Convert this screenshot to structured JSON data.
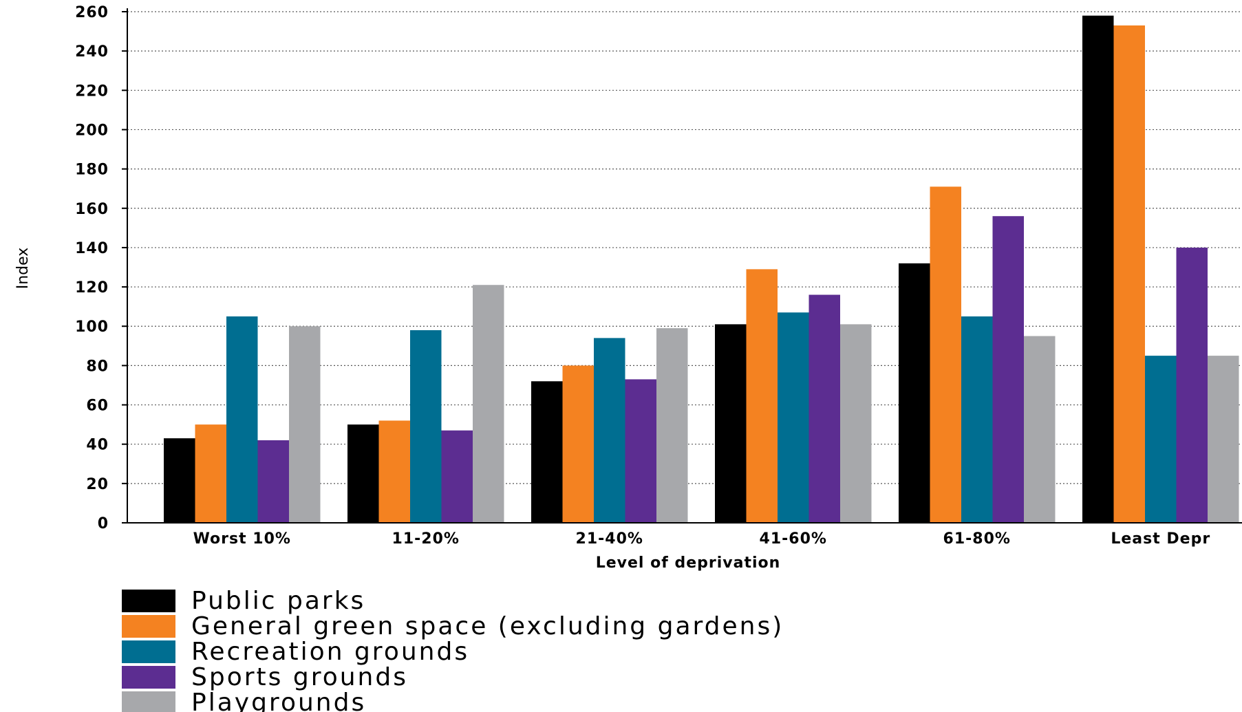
{
  "chart_data": {
    "type": "bar",
    "title": "",
    "xlabel": "Level of deprivation",
    "ylabel": "Index",
    "ylim": [
      0,
      260
    ],
    "yticks": [
      0,
      20,
      40,
      60,
      80,
      100,
      120,
      140,
      160,
      180,
      200,
      220,
      240,
      260
    ],
    "grid": true,
    "legend_position": "bottom-left",
    "categories": [
      "Worst 10%",
      "11-20%",
      "21-40%",
      "41-60%",
      "61-80%",
      "Least Depr"
    ],
    "series": [
      {
        "name": "Public parks",
        "color": "#000000",
        "values": [
          43,
          50,
          72,
          101,
          132,
          258
        ]
      },
      {
        "name": "General green space (excluding gardens)",
        "color": "#f48221",
        "values": [
          50,
          52,
          80,
          129,
          171,
          253
        ]
      },
      {
        "name": "Recreation grounds",
        "color": "#006e91",
        "values": [
          105,
          98,
          94,
          107,
          105,
          85
        ]
      },
      {
        "name": "Sports grounds",
        "color": "#5c2d91",
        "values": [
          42,
          47,
          73,
          116,
          156,
          140
        ]
      },
      {
        "name": "Playgrounds",
        "color": "#a7a8ab",
        "values": [
          100,
          121,
          99,
          101,
          95,
          85
        ]
      }
    ]
  }
}
